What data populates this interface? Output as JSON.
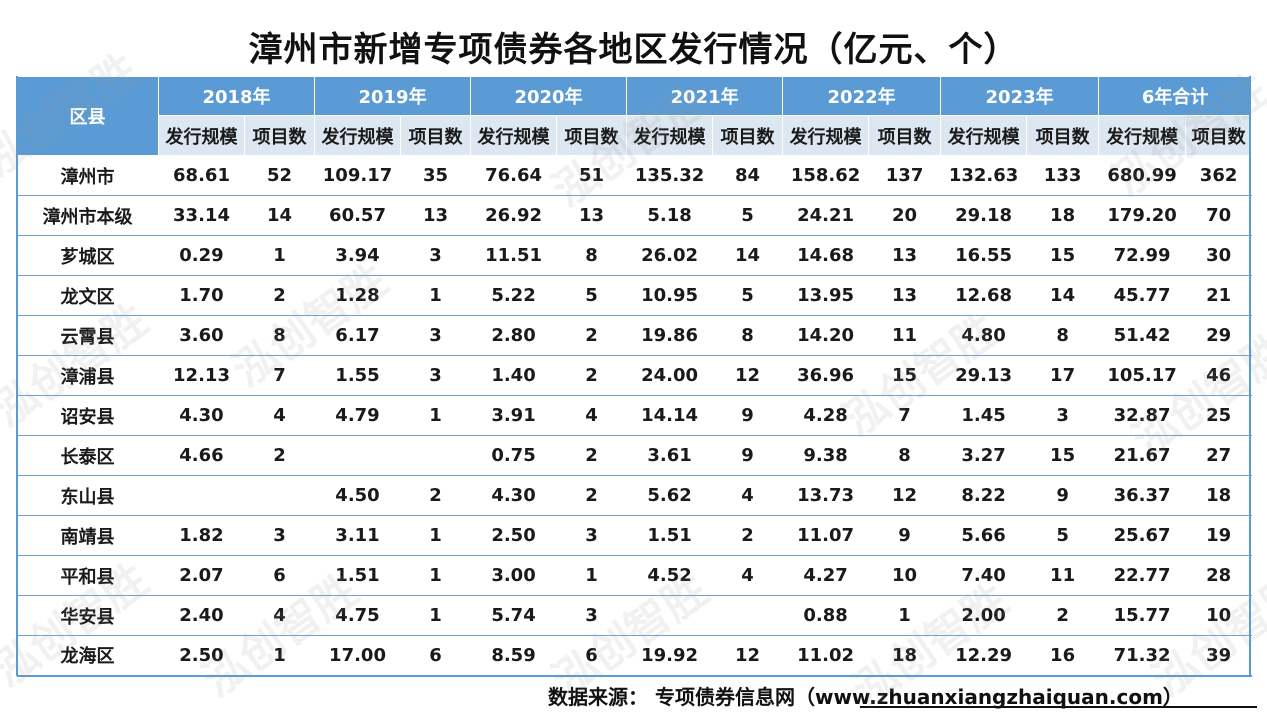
{
  "title": "漳州市新增专项债券各地区发行情况（亿元、个）",
  "table": {
    "region_header": "区县",
    "years": [
      "2018年",
      "2019年",
      "2020年",
      "2021年",
      "2022年",
      "2023年",
      "6年合计"
    ],
    "sub_headers": [
      "发行规模",
      "项目数"
    ],
    "rows": [
      {
        "name": "漳州市",
        "cells": [
          "68.61",
          "52",
          "109.17",
          "35",
          "76.64",
          "51",
          "135.32",
          "84",
          "158.62",
          "137",
          "132.63",
          "133",
          "680.99",
          "362"
        ]
      },
      {
        "name": "漳州市本级",
        "cells": [
          "33.14",
          "14",
          "60.57",
          "13",
          "26.92",
          "13",
          "5.18",
          "5",
          "24.21",
          "20",
          "29.18",
          "18",
          "179.20",
          "70"
        ]
      },
      {
        "name": "芗城区",
        "cells": [
          "0.29",
          "1",
          "3.94",
          "3",
          "11.51",
          "8",
          "26.02",
          "14",
          "14.68",
          "13",
          "16.55",
          "15",
          "72.99",
          "30"
        ]
      },
      {
        "name": "龙文区",
        "cells": [
          "1.70",
          "2",
          "1.28",
          "1",
          "5.22",
          "5",
          "10.95",
          "5",
          "13.95",
          "13",
          "12.68",
          "14",
          "45.77",
          "21"
        ]
      },
      {
        "name": "云霄县",
        "cells": [
          "3.60",
          "8",
          "6.17",
          "3",
          "2.80",
          "2",
          "19.86",
          "8",
          "14.20",
          "11",
          "4.80",
          "8",
          "51.42",
          "29"
        ]
      },
      {
        "name": "漳浦县",
        "cells": [
          "12.13",
          "7",
          "1.55",
          "3",
          "1.40",
          "2",
          "24.00",
          "12",
          "36.96",
          "15",
          "29.13",
          "17",
          "105.17",
          "46"
        ]
      },
      {
        "name": "诏安县",
        "cells": [
          "4.30",
          "4",
          "4.79",
          "1",
          "3.91",
          "4",
          "14.14",
          "9",
          "4.28",
          "7",
          "1.45",
          "3",
          "32.87",
          "25"
        ]
      },
      {
        "name": "长泰区",
        "cells": [
          "4.66",
          "2",
          "",
          "",
          "0.75",
          "2",
          "3.61",
          "9",
          "9.38",
          "8",
          "3.27",
          "15",
          "21.67",
          "27"
        ]
      },
      {
        "name": "东山县",
        "cells": [
          "",
          "",
          "4.50",
          "2",
          "4.30",
          "2",
          "5.62",
          "4",
          "13.73",
          "12",
          "8.22",
          "9",
          "36.37",
          "18"
        ]
      },
      {
        "name": "南靖县",
        "cells": [
          "1.82",
          "3",
          "3.11",
          "1",
          "2.50",
          "3",
          "1.51",
          "2",
          "11.07",
          "9",
          "5.66",
          "5",
          "25.67",
          "19"
        ]
      },
      {
        "name": "平和县",
        "cells": [
          "2.07",
          "6",
          "1.51",
          "1",
          "3.00",
          "1",
          "4.52",
          "4",
          "4.27",
          "10",
          "7.40",
          "11",
          "22.77",
          "28"
        ]
      },
      {
        "name": "华安县",
        "cells": [
          "2.40",
          "4",
          "4.75",
          "1",
          "5.74",
          "3",
          "",
          "",
          "0.88",
          "1",
          "2.00",
          "2",
          "15.77",
          "10"
        ]
      },
      {
        "name": "龙海区",
        "cells": [
          "2.50",
          "1",
          "17.00",
          "6",
          "8.59",
          "6",
          "19.92",
          "12",
          "11.02",
          "18",
          "12.29",
          "16",
          "71.32",
          "39"
        ]
      }
    ]
  },
  "source": "数据来源： 专项债券信息网（www.zhuanxiangzhaiquan.com）",
  "watermark": "泓创智胜",
  "colors": {
    "header_blue": "#5b9bd5",
    "subheader_bg": "#dde7f2",
    "line_blue": "#6fa3d6"
  }
}
